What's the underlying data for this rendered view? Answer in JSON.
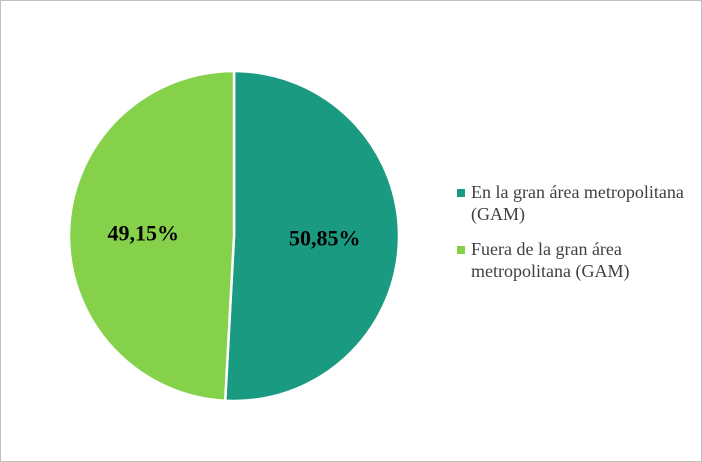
{
  "chart_data": {
    "type": "pie",
    "categories": [
      "En la gran área metropolitana (GAM)",
      "Fuera de la gran área metropolitana (GAM)"
    ],
    "values": [
      50.85,
      49.15
    ],
    "value_labels": [
      "50,85%",
      "49,15%"
    ],
    "colors": [
      "#1a9a80",
      "#86d14a"
    ],
    "start_angle": "12 o'clock",
    "direction": "clockwise",
    "legend_position": "right",
    "title": ""
  }
}
